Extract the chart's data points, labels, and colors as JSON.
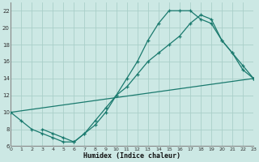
{
  "bg_color": "#cce8e4",
  "grid_color": "#aacfc9",
  "line_color": "#1a7a6e",
  "xlabel": "Humidex (Indice chaleur)",
  "xlim": [
    0,
    23
  ],
  "ylim": [
    6,
    23
  ],
  "xticks": [
    0,
    1,
    2,
    3,
    4,
    5,
    6,
    7,
    8,
    9,
    10,
    11,
    12,
    13,
    14,
    15,
    16,
    17,
    18,
    19,
    20,
    21,
    22,
    23
  ],
  "yticks": [
    6,
    8,
    10,
    12,
    14,
    16,
    18,
    20,
    22
  ],
  "line1_x": [
    0,
    1,
    2,
    3,
    4,
    5,
    6,
    7,
    8,
    9,
    10,
    11,
    12,
    13,
    14,
    15,
    16,
    17,
    18,
    19,
    20,
    21,
    22,
    23
  ],
  "line1_y": [
    10,
    9,
    8,
    7.5,
    7,
    6.5,
    6.5,
    7.5,
    8.5,
    10,
    12,
    14,
    16,
    18.5,
    20.5,
    22,
    22,
    22,
    21,
    20.5,
    18.5,
    17,
    15,
    14
  ],
  "line2_x": [
    3,
    4,
    5,
    6,
    7,
    8,
    9,
    10,
    11,
    12,
    13,
    14,
    15,
    16,
    17,
    18,
    19,
    20,
    21,
    22,
    23
  ],
  "line2_y": [
    8,
    7.5,
    7,
    6.5,
    7.5,
    9,
    10.5,
    12,
    13,
    14.5,
    16,
    17,
    18,
    19,
    20.5,
    21.5,
    21,
    18.5,
    17,
    15.5,
    14
  ],
  "line3_x": [
    0,
    23
  ],
  "line3_y": [
    10,
    14
  ]
}
